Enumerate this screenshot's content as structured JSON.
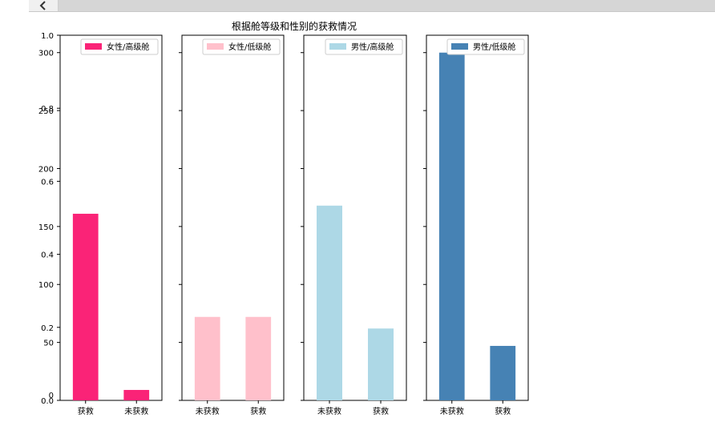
{
  "icons": {
    "scroll_left": "chevron-left-icon"
  },
  "chart_data": {
    "type": "bar",
    "title": "根据舱等级和性别的获救情况",
    "overlay_yaxis": {
      "ticks": [
        "0.0",
        "0.2",
        "0.4",
        "0.6",
        "0.8",
        "1.0"
      ],
      "range": [
        0,
        1
      ]
    },
    "ylim": [
      0,
      315
    ],
    "yticks": [
      0,
      50,
      100,
      150,
      200,
      250,
      300
    ],
    "panels": [
      {
        "legend": "女性/高级舱",
        "color": "#fa2377",
        "categories": [
          "获救",
          "未获救"
        ],
        "values": [
          161,
          9
        ]
      },
      {
        "legend": "女性/低级舱",
        "color": "#ffc0cb",
        "categories": [
          "未获救",
          "获救"
        ],
        "values": [
          72,
          72
        ]
      },
      {
        "legend": "男性/高级舱",
        "color": "#add8e6",
        "categories": [
          "未获救",
          "获救"
        ],
        "values": [
          168,
          62
        ]
      },
      {
        "legend": "男性/低级舱",
        "color": "#4682b4",
        "categories": [
          "未获救",
          "获救"
        ],
        "values": [
          300,
          47
        ]
      }
    ]
  }
}
